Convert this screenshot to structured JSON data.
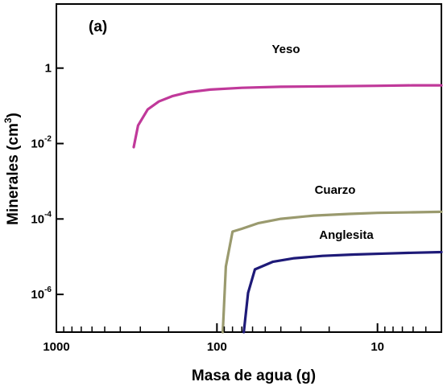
{
  "chart_data": {
    "type": "line",
    "panel_label": "(a)",
    "xlabel": "Masa de agua (g)",
    "ylabel_main": "Minerales (cm",
    "ylabel_sup": "3",
    "ylabel_close": ")",
    "x_scale": "log",
    "x_reversed": true,
    "y_scale": "log",
    "xlim": [
      1000,
      4
    ],
    "ylim": [
      1e-07,
      50
    ],
    "x_ticks": [
      {
        "value": 1000,
        "label": "1000"
      },
      {
        "value": 100,
        "label": "100"
      },
      {
        "value": 10,
        "label": "10"
      }
    ],
    "y_ticks": [
      {
        "value": 1,
        "base": "1",
        "exp": ""
      },
      {
        "value": 0.01,
        "base": "10",
        "exp": "-2"
      },
      {
        "value": 0.0001,
        "base": "10",
        "exp": "-4"
      },
      {
        "value": 1e-06,
        "base": "10",
        "exp": "-6"
      }
    ],
    "grid": false,
    "legend": "none",
    "series": [
      {
        "name": "Yeso",
        "color": "#c0399a",
        "x": [
          330,
          310,
          270,
          230,
          190,
          150,
          110,
          70,
          40,
          20,
          10,
          6,
          4
        ],
        "y": [
          0.008,
          0.03,
          0.08,
          0.13,
          0.18,
          0.23,
          0.27,
          0.3,
          0.32,
          0.33,
          0.34,
          0.35,
          0.35
        ]
      },
      {
        "name": "Cuarzo",
        "color": "#9a9a6e",
        "x": [
          92,
          88,
          80,
          70,
          55,
          40,
          25,
          15,
          10,
          6,
          4
        ],
        "y": [
          1e-07,
          5.5e-06,
          4.62e-05,
          5.5e-05,
          7.78e-05,
          0.000101,
          0.000123,
          0.000136,
          0.000145,
          0.00015,
          0.000155
        ]
      },
      {
        "name": "Anglesita",
        "color": "#1e1a78",
        "x": [
          68,
          64,
          58,
          45,
          33,
          22,
          14,
          9,
          6,
          4
        ],
        "y": [
          1e-07,
          1.1e-06,
          4.6e-06,
          7.3e-06,
          9.1e-06,
          1.05e-05,
          1.14e-05,
          1.21e-05,
          1.27e-05,
          1.32e-05
        ]
      }
    ]
  }
}
